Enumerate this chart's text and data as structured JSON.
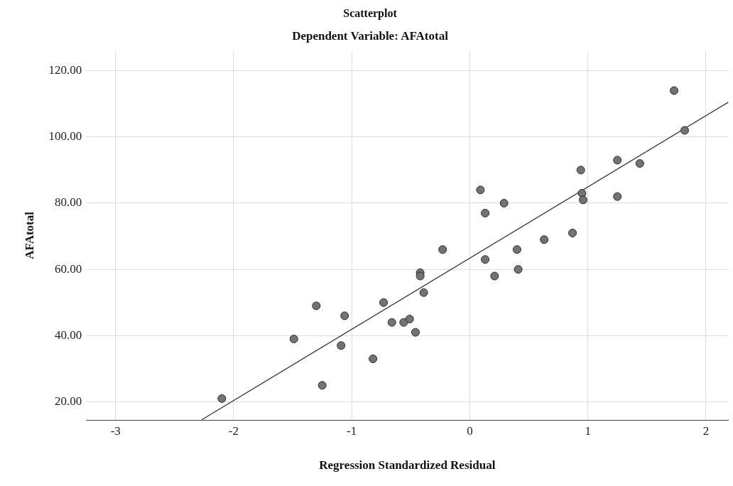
{
  "chart_data": {
    "type": "scatter",
    "title": "Scatterplot",
    "subtitle": "Dependent Variable: AFAtotal",
    "xlabel": "Regression Standardized Residual",
    "ylabel": "AFAtotal",
    "xlim": [
      -3.25,
      2.19
    ],
    "xticks": [
      -3,
      -2,
      -1,
      0,
      1,
      2
    ],
    "ylim": [
      14.5,
      126
    ],
    "yticks": [
      {
        "value": 20,
        "label": "20.00"
      },
      {
        "value": 40,
        "label": "40.00"
      },
      {
        "value": 60,
        "label": "60.00"
      },
      {
        "value": 80,
        "label": "80.00"
      },
      {
        "value": 100,
        "label": "100.00"
      },
      {
        "value": 120,
        "label": "120.00"
      }
    ],
    "grid": true,
    "legend": false,
    "marker": "circle",
    "series": [
      {
        "type": "scatter",
        "color": "#737373",
        "x": [
          -2.1,
          -1.49,
          -1.3,
          -1.25,
          -1.06,
          -1.09,
          -0.82,
          -0.73,
          -0.66,
          -0.56,
          -0.51,
          -0.46,
          -0.42,
          -0.42,
          -0.39,
          -0.23,
          1.73,
          1.82,
          1.25,
          1.44,
          0.94,
          0.09,
          0.95,
          0.96,
          1.25,
          0.29,
          0.13,
          0.87,
          0.63,
          0.4,
          0.13,
          0.41,
          0.21
        ],
        "values": [
          21,
          39,
          49,
          25,
          46,
          37,
          33,
          50,
          44,
          44,
          45,
          41,
          59,
          58,
          53,
          66,
          114,
          102,
          93,
          92,
          90,
          84,
          83,
          81,
          82,
          80,
          77,
          71,
          69,
          66,
          63,
          60,
          58
        ]
      },
      {
        "type": "line",
        "color": "#333333",
        "x": [
          -2.27,
          2.19
        ],
        "values": [
          14.6,
          110.5
        ],
        "marker": "none",
        "line_style": "solid"
      }
    ]
  }
}
